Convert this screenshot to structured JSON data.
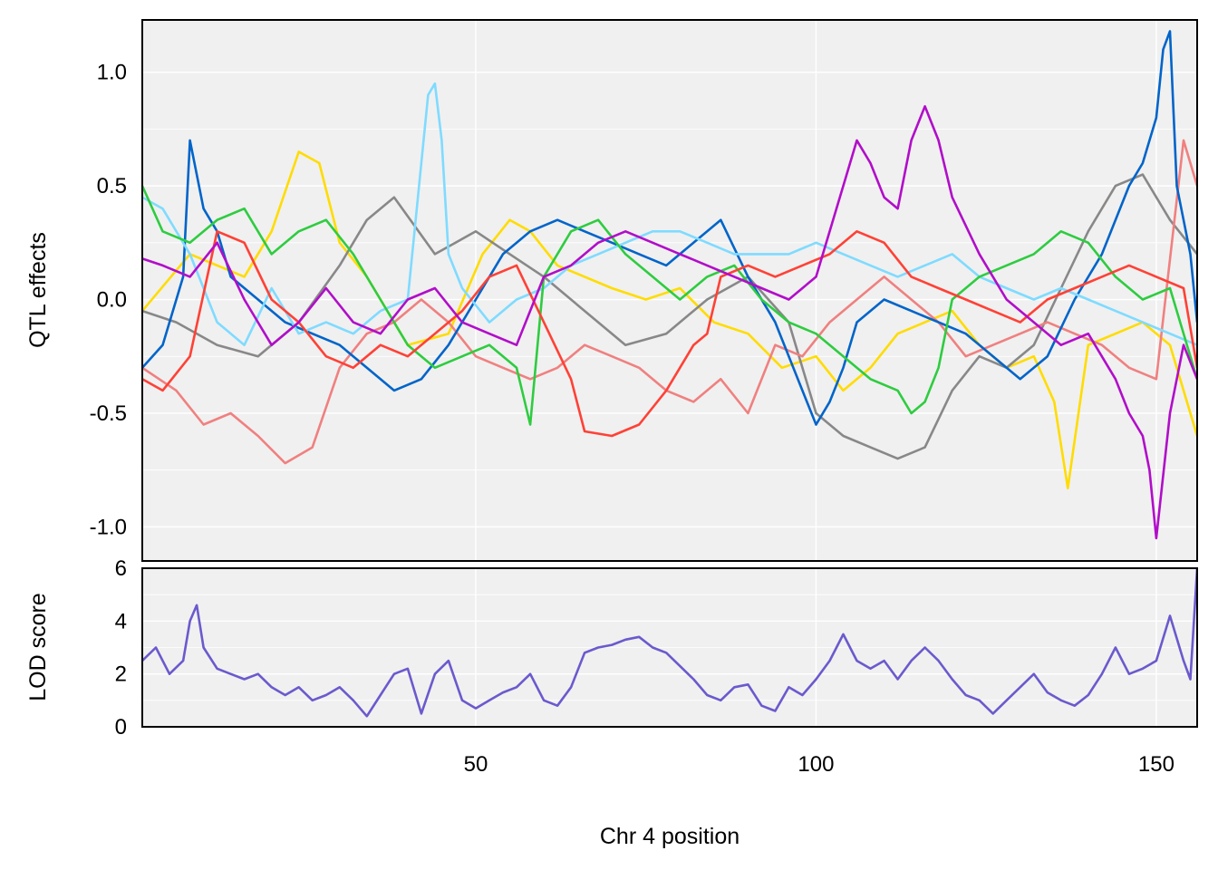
{
  "chart_data": [
    {
      "type": "line",
      "panel": "effects",
      "ylabel": "QTL effects",
      "xlim": [
        1,
        156
      ],
      "ylim": [
        -1.15,
        1.23
      ],
      "yticks": [
        1.0,
        0.5,
        0.0,
        -0.5,
        -1.0
      ],
      "ytick_labels": [
        "1.0",
        "0.5",
        "0.0",
        "-0.5",
        "-1.0"
      ],
      "xticks": [
        50,
        100,
        150
      ],
      "grid": true,
      "series": [
        {
          "color": "#FFDC00",
          "x": [
            1,
            8,
            16,
            20,
            24,
            27,
            30,
            34,
            40,
            46,
            51,
            55,
            58,
            62,
            66,
            70,
            75,
            80,
            85,
            90,
            95,
            100,
            104,
            108,
            112,
            116,
            120,
            124,
            128,
            132,
            135,
            137,
            140,
            144,
            148,
            152,
            156
          ],
          "values": [
            -0.05,
            0.2,
            0.1,
            0.3,
            0.65,
            0.6,
            0.25,
            0.1,
            -0.2,
            -0.15,
            0.2,
            0.35,
            0.3,
            0.15,
            0.1,
            0.05,
            0.0,
            0.05,
            -0.1,
            -0.15,
            -0.3,
            -0.25,
            -0.4,
            -0.3,
            -0.15,
            -0.1,
            -0.05,
            -0.2,
            -0.3,
            -0.25,
            -0.45,
            -0.83,
            -0.2,
            -0.15,
            -0.1,
            -0.2,
            -0.6
          ]
        },
        {
          "color": "#888888",
          "x": [
            1,
            6,
            12,
            18,
            24,
            30,
            34,
            38,
            44,
            50,
            55,
            60,
            66,
            72,
            78,
            84,
            90,
            96,
            100,
            104,
            108,
            112,
            116,
            120,
            124,
            128,
            132,
            136,
            140,
            144,
            148,
            152,
            156
          ],
          "values": [
            -0.05,
            -0.1,
            -0.2,
            -0.25,
            -0.1,
            0.15,
            0.35,
            0.45,
            0.2,
            0.3,
            0.2,
            0.1,
            -0.05,
            -0.2,
            -0.15,
            0.0,
            0.1,
            -0.1,
            -0.5,
            -0.6,
            -0.65,
            -0.7,
            -0.65,
            -0.4,
            -0.25,
            -0.3,
            -0.2,
            0.05,
            0.3,
            0.5,
            0.55,
            0.35,
            0.2
          ]
        },
        {
          "color": "#F08080",
          "x": [
            1,
            6,
            10,
            14,
            18,
            22,
            26,
            30,
            34,
            38,
            42,
            46,
            50,
            54,
            58,
            62,
            66,
            70,
            74,
            78,
            82,
            86,
            90,
            94,
            98,
            102,
            106,
            110,
            114,
            118,
            122,
            126,
            130,
            134,
            138,
            142,
            146,
            150,
            154,
            156
          ],
          "values": [
            -0.3,
            -0.4,
            -0.55,
            -0.5,
            -0.6,
            -0.72,
            -0.65,
            -0.3,
            -0.15,
            -0.1,
            0.0,
            -0.1,
            -0.25,
            -0.3,
            -0.35,
            -0.3,
            -0.2,
            -0.25,
            -0.3,
            -0.4,
            -0.45,
            -0.35,
            -0.5,
            -0.2,
            -0.25,
            -0.1,
            0.0,
            0.1,
            0.0,
            -0.1,
            -0.25,
            -0.2,
            -0.15,
            -0.1,
            -0.15,
            -0.2,
            -0.3,
            -0.35,
            0.7,
            0.5
          ]
        },
        {
          "color": "#0064C9",
          "x": [
            1,
            4,
            7,
            8,
            10,
            12,
            14,
            18,
            22,
            26,
            30,
            34,
            38,
            42,
            46,
            50,
            54,
            58,
            62,
            66,
            70,
            74,
            78,
            82,
            86,
            90,
            94,
            98,
            100,
            102,
            104,
            106,
            110,
            114,
            118,
            122,
            126,
            130,
            134,
            138,
            142,
            146,
            148,
            150,
            151,
            152,
            153,
            155,
            156
          ],
          "values": [
            -0.3,
            -0.2,
            0.1,
            0.7,
            0.4,
            0.3,
            0.1,
            0.0,
            -0.1,
            -0.15,
            -0.2,
            -0.3,
            -0.4,
            -0.35,
            -0.2,
            0.0,
            0.2,
            0.3,
            0.35,
            0.3,
            0.25,
            0.2,
            0.15,
            0.25,
            0.35,
            0.1,
            -0.1,
            -0.4,
            -0.55,
            -0.45,
            -0.3,
            -0.1,
            0.0,
            -0.05,
            -0.1,
            -0.15,
            -0.25,
            -0.35,
            -0.25,
            0.0,
            0.2,
            0.5,
            0.6,
            0.8,
            1.1,
            1.18,
            0.5,
            0.2,
            -0.1
          ]
        },
        {
          "color": "#7FDBFF",
          "x": [
            1,
            4,
            8,
            12,
            16,
            20,
            24,
            28,
            32,
            36,
            40,
            42,
            43,
            44,
            45,
            46,
            48,
            52,
            56,
            60,
            64,
            68,
            72,
            76,
            80,
            84,
            88,
            92,
            96,
            100,
            104,
            108,
            112,
            116,
            120,
            124,
            128,
            132,
            136,
            140,
            144,
            148,
            152,
            156
          ],
          "values": [
            0.45,
            0.4,
            0.2,
            -0.1,
            -0.2,
            0.05,
            -0.15,
            -0.1,
            -0.15,
            -0.05,
            0.0,
            0.6,
            0.9,
            0.95,
            0.7,
            0.2,
            0.05,
            -0.1,
            0.0,
            0.05,
            0.15,
            0.2,
            0.25,
            0.3,
            0.3,
            0.25,
            0.2,
            0.2,
            0.2,
            0.25,
            0.2,
            0.15,
            0.1,
            0.15,
            0.2,
            0.1,
            0.05,
            0.0,
            0.05,
            0.0,
            -0.05,
            -0.1,
            -0.15,
            -0.2
          ]
        },
        {
          "color": "#2ECC40",
          "x": [
            1,
            4,
            8,
            12,
            16,
            20,
            24,
            28,
            32,
            36,
            40,
            44,
            48,
            52,
            56,
            58,
            60,
            64,
            68,
            72,
            76,
            80,
            84,
            88,
            92,
            96,
            100,
            102,
            104,
            106,
            108,
            112,
            114,
            116,
            118,
            120,
            124,
            128,
            132,
            136,
            140,
            144,
            148,
            152,
            156
          ],
          "values": [
            0.5,
            0.3,
            0.25,
            0.35,
            0.4,
            0.2,
            0.3,
            0.35,
            0.2,
            0.0,
            -0.2,
            -0.3,
            -0.25,
            -0.2,
            -0.3,
            -0.55,
            0.1,
            0.3,
            0.35,
            0.2,
            0.1,
            0.0,
            0.1,
            0.15,
            0.0,
            -0.1,
            -0.15,
            -0.2,
            -0.25,
            -0.3,
            -0.35,
            -0.4,
            -0.5,
            -0.45,
            -0.3,
            0.0,
            0.1,
            0.15,
            0.2,
            0.3,
            0.25,
            0.1,
            0.0,
            0.05,
            -0.35
          ]
        },
        {
          "color": "#FF4136",
          "x": [
            1,
            4,
            8,
            12,
            16,
            20,
            24,
            28,
            32,
            36,
            40,
            44,
            48,
            52,
            56,
            60,
            64,
            66,
            70,
            74,
            78,
            82,
            84,
            86,
            90,
            94,
            98,
            102,
            106,
            110,
            114,
            118,
            122,
            126,
            130,
            134,
            138,
            142,
            146,
            150,
            154,
            156
          ],
          "values": [
            -0.35,
            -0.4,
            -0.25,
            0.3,
            0.25,
            0.0,
            -0.1,
            -0.25,
            -0.3,
            -0.2,
            -0.25,
            -0.15,
            -0.05,
            0.1,
            0.15,
            -0.1,
            -0.35,
            -0.58,
            -0.6,
            -0.55,
            -0.4,
            -0.2,
            -0.15,
            0.1,
            0.15,
            0.1,
            0.15,
            0.2,
            0.3,
            0.25,
            0.1,
            0.05,
            0.0,
            -0.05,
            -0.1,
            0.0,
            0.05,
            0.1,
            0.15,
            0.1,
            0.05,
            -0.3
          ]
        },
        {
          "color": "#B10DC9",
          "x": [
            1,
            4,
            8,
            12,
            16,
            20,
            24,
            28,
            32,
            36,
            40,
            44,
            48,
            52,
            56,
            60,
            64,
            68,
            72,
            76,
            80,
            84,
            88,
            92,
            96,
            100,
            104,
            106,
            108,
            110,
            112,
            114,
            116,
            118,
            120,
            124,
            128,
            132,
            136,
            140,
            144,
            146,
            148,
            149,
            150,
            152,
            154,
            156
          ],
          "values": [
            0.18,
            0.15,
            0.1,
            0.25,
            0.0,
            -0.2,
            -0.1,
            0.05,
            -0.1,
            -0.15,
            0.0,
            0.05,
            -0.1,
            -0.15,
            -0.2,
            0.1,
            0.15,
            0.25,
            0.3,
            0.25,
            0.2,
            0.15,
            0.1,
            0.05,
            0.0,
            0.1,
            0.5,
            0.7,
            0.6,
            0.45,
            0.4,
            0.7,
            0.85,
            0.7,
            0.45,
            0.2,
            0.0,
            -0.1,
            -0.2,
            -0.15,
            -0.35,
            -0.5,
            -0.6,
            -0.75,
            -1.05,
            -0.5,
            -0.2,
            -0.35
          ]
        }
      ]
    },
    {
      "type": "line",
      "panel": "lod",
      "ylabel": "LOD score",
      "xlabel": "Chr 4 position",
      "xlim": [
        1,
        156
      ],
      "ylim": [
        0,
        6
      ],
      "yticks": [
        6,
        4,
        2,
        0
      ],
      "ytick_labels": [
        "6",
        "4",
        "2",
        "0"
      ],
      "xticks": [
        50,
        100,
        150
      ],
      "xtick_labels": [
        "50",
        "100",
        "150"
      ],
      "grid": true,
      "series": [
        {
          "color": "#6A5ACD",
          "x": [
            1,
            3,
            5,
            7,
            8,
            9,
            10,
            12,
            14,
            16,
            18,
            20,
            22,
            24,
            26,
            28,
            30,
            32,
            34,
            36,
            38,
            40,
            42,
            44,
            46,
            48,
            50,
            52,
            54,
            56,
            58,
            60,
            62,
            64,
            66,
            68,
            70,
            72,
            74,
            76,
            78,
            80,
            82,
            84,
            86,
            88,
            90,
            92,
            94,
            96,
            98,
            100,
            102,
            104,
            106,
            108,
            110,
            112,
            114,
            116,
            118,
            120,
            122,
            124,
            126,
            128,
            130,
            132,
            134,
            136,
            138,
            140,
            142,
            144,
            146,
            148,
            150,
            152,
            154,
            155,
            156
          ],
          "values": [
            2.5,
            3.0,
            2.0,
            2.5,
            4.0,
            4.6,
            3.0,
            2.2,
            2.0,
            1.8,
            2.0,
            1.5,
            1.2,
            1.5,
            1.0,
            1.2,
            1.5,
            1.0,
            0.4,
            1.2,
            2.0,
            2.2,
            0.5,
            2.0,
            2.5,
            1.0,
            0.7,
            1.0,
            1.3,
            1.5,
            2.0,
            1.0,
            0.8,
            1.5,
            2.8,
            3.0,
            3.1,
            3.3,
            3.4,
            3.0,
            2.8,
            2.3,
            1.8,
            1.2,
            1.0,
            1.5,
            1.6,
            0.8,
            0.6,
            1.5,
            1.2,
            1.8,
            2.5,
            3.5,
            2.5,
            2.2,
            2.5,
            1.8,
            2.5,
            3.0,
            2.5,
            1.8,
            1.2,
            1.0,
            0.5,
            1.0,
            1.5,
            2.0,
            1.3,
            1.0,
            0.8,
            1.2,
            2.0,
            3.0,
            2.0,
            2.2,
            2.5,
            4.2,
            2.5,
            1.8,
            6.0
          ]
        }
      ]
    }
  ]
}
